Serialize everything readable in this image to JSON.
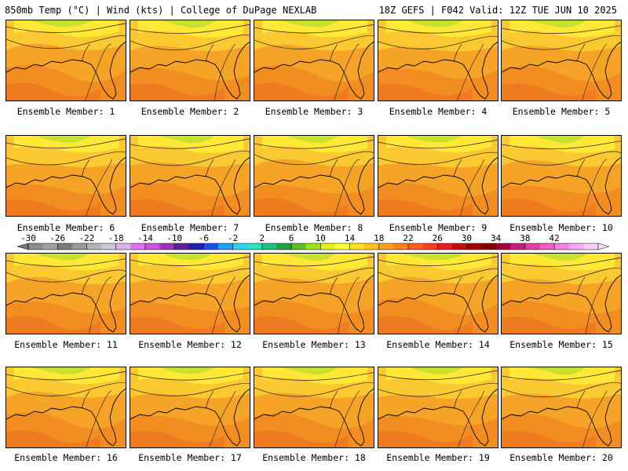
{
  "header": {
    "left": "850mb Temp (°C) | Wind (kts) | College of DuPage NEXLAB",
    "right": "18Z GEFS | F042 Valid: 12Z TUE JUN 10 2025"
  },
  "label_prefix": "Ensemble Member: ",
  "members": [
    {
      "label": "Ensemble Member: 1"
    },
    {
      "label": "Ensemble Member: 2"
    },
    {
      "label": "Ensemble Member: 3"
    },
    {
      "label": "Ensemble Member: 4"
    },
    {
      "label": "Ensemble Member: 5"
    },
    {
      "label": "Ensemble Member: 6"
    },
    {
      "label": "Ensemble Member: 7"
    },
    {
      "label": "Ensemble Member: 8"
    },
    {
      "label": "Ensemble Member: 9"
    },
    {
      "label": "Ensemble Member: 10"
    },
    {
      "label": "Ensemble Member: 11"
    },
    {
      "label": "Ensemble Member: 12"
    },
    {
      "label": "Ensemble Member: 13"
    },
    {
      "label": "Ensemble Member: 14"
    },
    {
      "label": "Ensemble Member: 15"
    },
    {
      "label": "Ensemble Member: 16"
    },
    {
      "label": "Ensemble Member: 17"
    },
    {
      "label": "Ensemble Member: 18"
    },
    {
      "label": "Ensemble Member: 19"
    },
    {
      "label": "Ensemble Member: 20"
    }
  ],
  "colorbar": {
    "tick_labels": [
      "-30",
      "-26",
      "-22",
      "-18",
      "-14",
      "-10",
      "-6",
      "-2",
      "2",
      "6",
      "10",
      "14",
      "18",
      "22",
      "26",
      "30",
      "34",
      "38",
      "42"
    ],
    "colors": [
      "#8c8c8c",
      "#a0a0a0",
      "#7a7a7a",
      "#9a9a9a",
      "#b4b4b4",
      "#c8c8d8",
      "#d8b4e8",
      "#e070f0",
      "#d050e0",
      "#a030c0",
      "#6020a0",
      "#2020b0",
      "#2050e0",
      "#20a0f0",
      "#30d0f0",
      "#30e0c0",
      "#20c080",
      "#20a040",
      "#60c020",
      "#a0e020",
      "#e0f020",
      "#ffff40",
      "#ffe020",
      "#ffc020",
      "#ffa020",
      "#ff8020",
      "#f86020",
      "#f04020",
      "#e02020",
      "#c01010",
      "#a00000",
      "#800000",
      "#a00040",
      "#c02080",
      "#e040a0",
      "#f060c0",
      "#f880e0",
      "#f8a8f0",
      "#f8d0f8"
    ],
    "tick_color_index": [
      0,
      2,
      4,
      6,
      8,
      10,
      12,
      14,
      16,
      18,
      20,
      22,
      24,
      26,
      28,
      30,
      32,
      34,
      36
    ]
  },
  "map_colors": {
    "warm": "#f08a20",
    "mid": "#f6a428",
    "cool": "#fac830",
    "yellow": "#ffe836",
    "green": "#c8e030",
    "contour": "#3a2a20"
  }
}
